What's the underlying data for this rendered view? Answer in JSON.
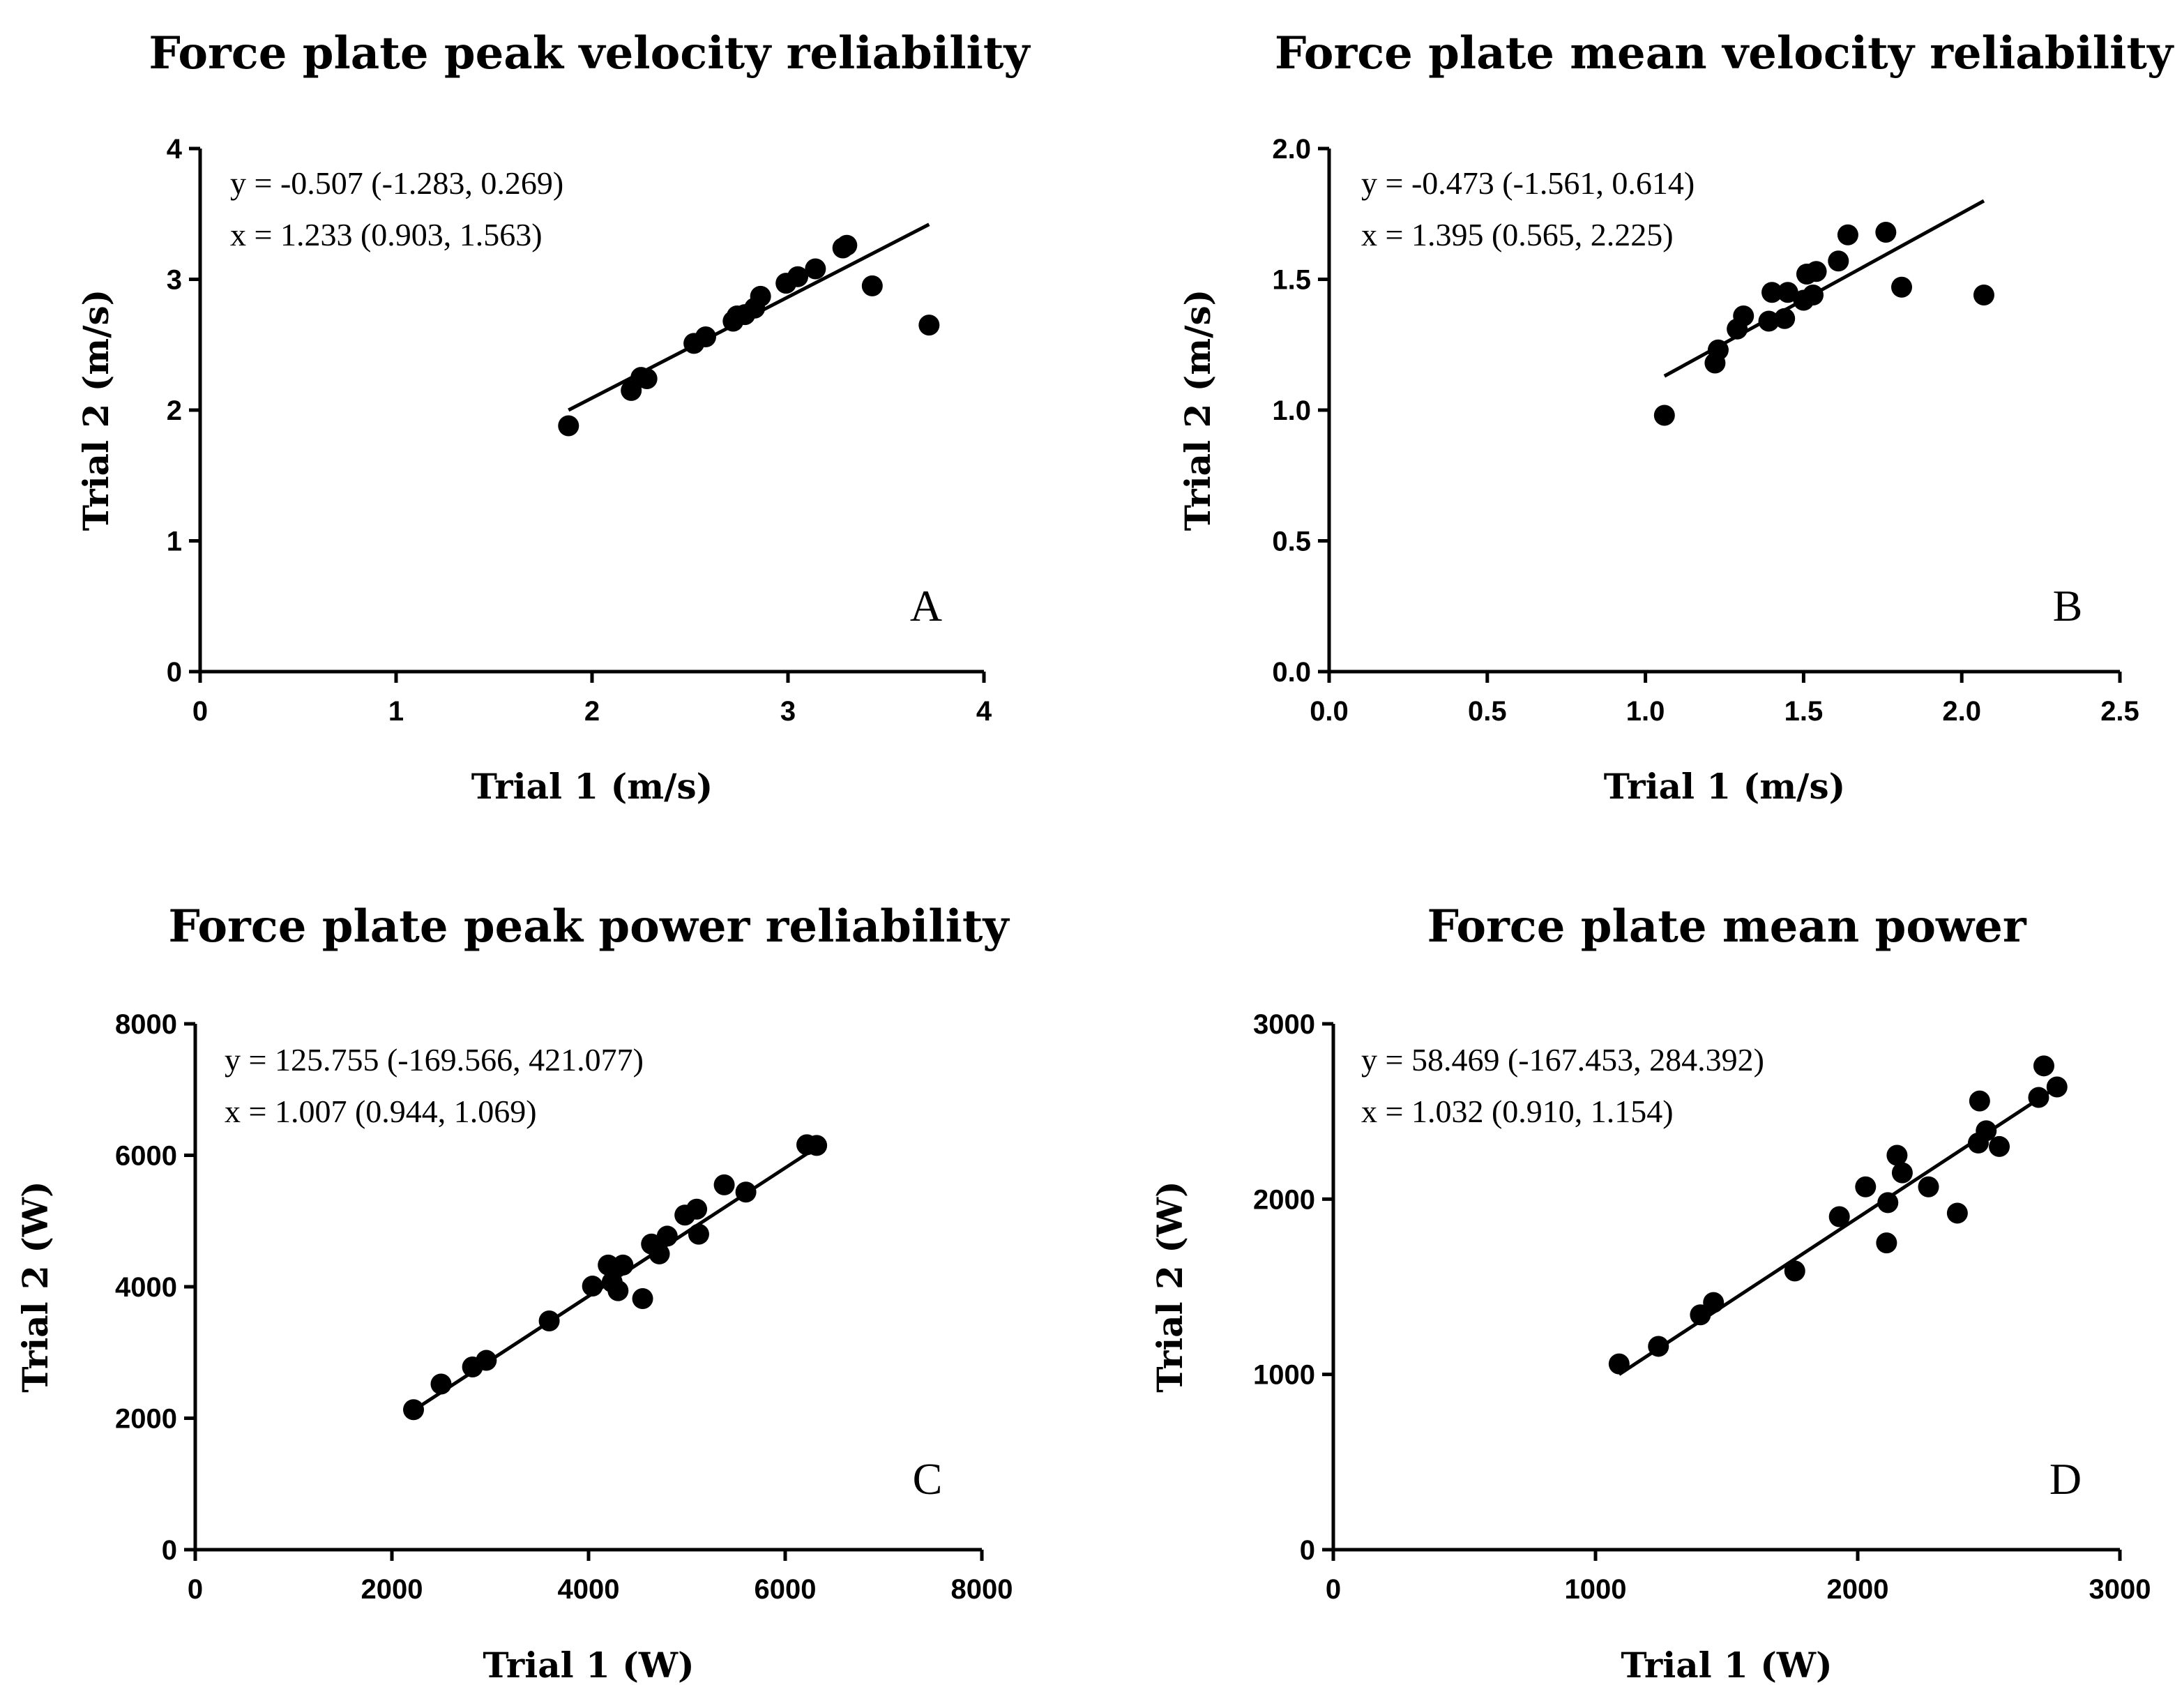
{
  "chart_data": [
    {
      "type": "scatter",
      "title": "Force plate peak velocity reliability",
      "xlabel": "Trial 1 (m/s)",
      "ylabel": "Trial 2 (m/s)",
      "xlim": [
        0,
        4
      ],
      "ylim": [
        0,
        4
      ],
      "xticks": [
        "0",
        "1",
        "2",
        "3",
        "4"
      ],
      "yticks": [
        "0",
        "1",
        "2",
        "3",
        "4"
      ],
      "annotation": [
        "y = -0.507 (-1.283, 0.269)",
        "x = 1.233 (0.903, 1.563)"
      ],
      "panel_letter": "A",
      "fit_line": {
        "x": [
          1.88,
          3.72
        ],
        "y": [
          2.0,
          3.42
        ]
      },
      "x": [
        1.88,
        2.2,
        2.25,
        2.28,
        2.52,
        2.58,
        2.72,
        2.74,
        2.78,
        2.83,
        2.86,
        2.99,
        3.05,
        3.14,
        3.28,
        3.3,
        3.43,
        3.72
      ],
      "y": [
        1.88,
        2.15,
        2.25,
        2.24,
        2.51,
        2.56,
        2.68,
        2.72,
        2.73,
        2.78,
        2.87,
        2.97,
        3.02,
        3.08,
        3.24,
        3.26,
        2.95,
        2.65
      ]
    },
    {
      "type": "scatter",
      "title": "Force plate mean velocity reliability",
      "xlabel": "Trial 1 (m/s)",
      "ylabel": "Trial 2 (m/s)",
      "xlim": [
        0,
        2.5
      ],
      "ylim": [
        0,
        2.0
      ],
      "xticks": [
        "0.0",
        "0.5",
        "1.0",
        "1.5",
        "2.0",
        "2.5"
      ],
      "yticks": [
        "0.0",
        "0.5",
        "1.0",
        "1.5",
        "2.0"
      ],
      "annotation": [
        "y = -0.473 (-1.561, 0.614)",
        "x = 1.395 (0.565, 2.225)"
      ],
      "panel_letter": "B",
      "fit_line": {
        "x": [
          1.06,
          2.07
        ],
        "y": [
          1.13,
          1.8
        ]
      },
      "x": [
        1.06,
        1.22,
        1.23,
        1.29,
        1.31,
        1.39,
        1.4,
        1.44,
        1.45,
        1.5,
        1.51,
        1.53,
        1.54,
        1.61,
        1.64,
        1.76,
        1.81,
        2.07
      ],
      "y": [
        0.98,
        1.18,
        1.23,
        1.31,
        1.36,
        1.34,
        1.45,
        1.35,
        1.45,
        1.42,
        1.52,
        1.44,
        1.53,
        1.57,
        1.67,
        1.68,
        1.47,
        1.44
      ]
    },
    {
      "type": "scatter",
      "title": "Force plate peak power reliability",
      "xlabel": "Trial 1 (W)",
      "ylabel": "Trial 2 (W)",
      "xlim": [
        0,
        8000
      ],
      "ylim": [
        0,
        8000
      ],
      "xticks": [
        "0",
        "2000",
        "4000",
        "6000",
        "8000"
      ],
      "yticks": [
        "0",
        "2000",
        "4000",
        "6000",
        "8000"
      ],
      "annotation": [
        "y = 125.755 (-169.566, 421.077)",
        "x = 1.007 (0.944, 1.069)"
      ],
      "panel_letter": "C",
      "fit_line": {
        "x": [
          2200,
          6350
        ],
        "y": [
          2100,
          6150
        ]
      },
      "x": [
        2220,
        2500,
        2820,
        2960,
        3600,
        4040,
        4200,
        4240,
        4300,
        4350,
        4550,
        4640,
        4720,
        4800,
        4980,
        5100,
        5120,
        5380,
        5600,
        6220,
        6320
      ],
      "y": [
        2130,
        2520,
        2780,
        2880,
        3480,
        4010,
        4330,
        4070,
        3940,
        4330,
        3820,
        4650,
        4500,
        4770,
        5090,
        5180,
        4800,
        5550,
        5440,
        6160,
        6150
      ]
    },
    {
      "type": "scatter",
      "title": "Force plate mean power",
      "xlabel": "Trial 1 (W)",
      "ylabel": "Trial 2 (W)",
      "xlim": [
        0,
        3000
      ],
      "ylim": [
        0,
        3000
      ],
      "xticks": [
        "0",
        "1000",
        "2000",
        "3000"
      ],
      "yticks": [
        "0",
        "1000",
        "2000",
        "3000"
      ],
      "annotation": [
        "y = 58.469 (-167.453, 284.392)",
        "x = 1.032 (0.910, 1.154)"
      ],
      "panel_letter": "D",
      "fit_line": {
        "x": [
          1090,
          2760
        ],
        "y": [
          1000,
          2640
        ]
      },
      "x": [
        1090,
        1240,
        1400,
        1450,
        1760,
        1930,
        2030,
        2110,
        2115,
        2150,
        2170,
        2270,
        2380,
        2460,
        2465,
        2490,
        2540,
        2690,
        2710,
        2760
      ],
      "y": [
        1060,
        1160,
        1340,
        1410,
        1590,
        1900,
        2070,
        1750,
        1980,
        2250,
        2150,
        2070,
        1920,
        2320,
        2560,
        2390,
        2300,
        2580,
        2760,
        2640
      ]
    }
  ]
}
